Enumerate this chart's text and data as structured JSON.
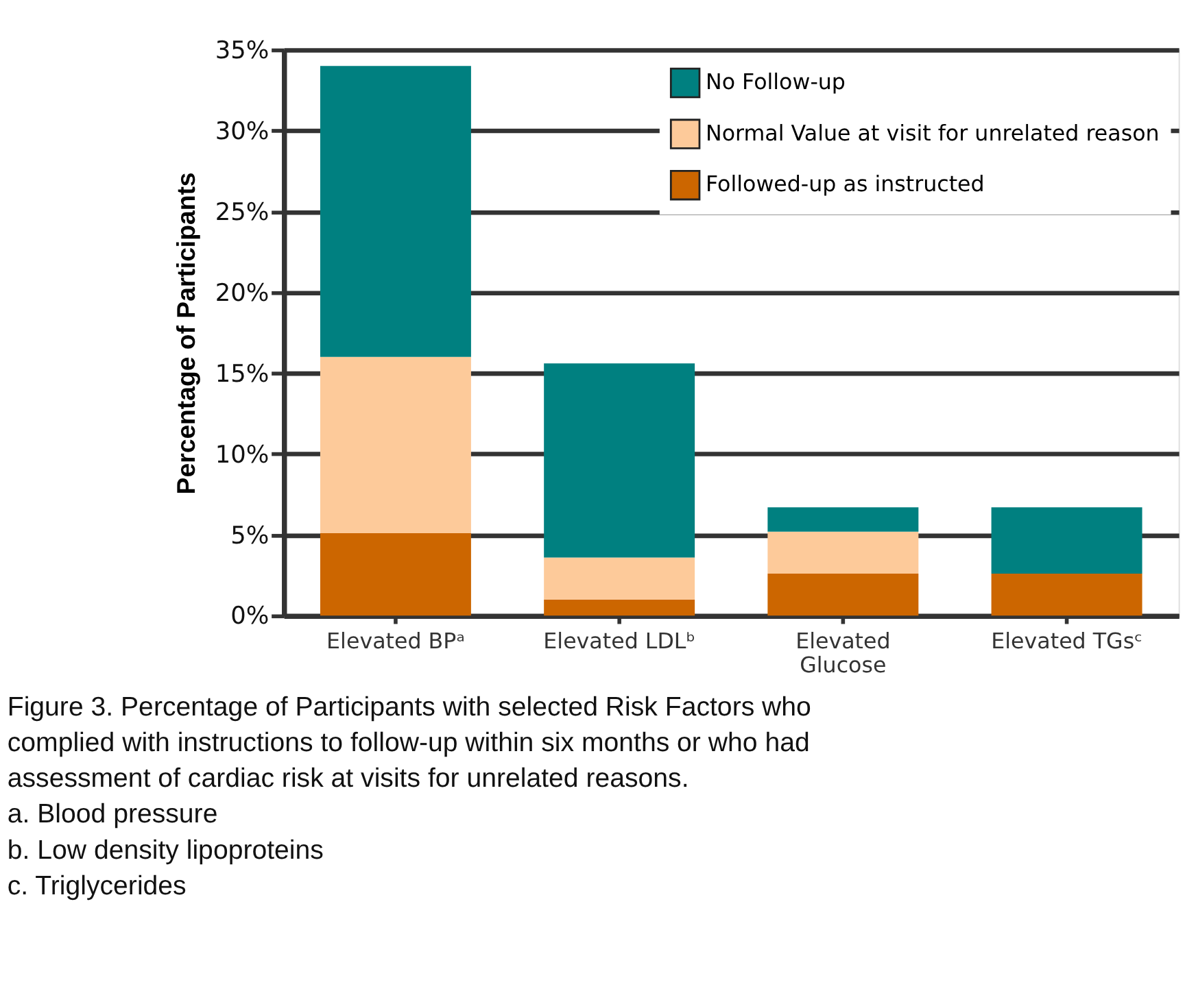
{
  "chart_data": {
    "type": "bar",
    "stacked": true,
    "ylabel": "Percentage of Participants",
    "categories": [
      "Elevated BPᵃ",
      "Elevated LDLᵇ",
      "Elevated Glucose",
      "Elevated TGsᶜ"
    ],
    "series": [
      {
        "name": "Followed-up as  instructed",
        "color": "#cc6600",
        "values": [
          5.1,
          1.0,
          2.6,
          2.6
        ]
      },
      {
        "name": "Normal Value at visit for unrelated reason",
        "color": "#fdca9a",
        "values": [
          10.9,
          2.6,
          2.6,
          0
        ]
      },
      {
        "name": "No Follow-up",
        "color": "#008080",
        "values": [
          18.0,
          12.0,
          1.5,
          4.1
        ]
      }
    ],
    "ylim": [
      0,
      35
    ],
    "yticks": [
      {
        "value": 0,
        "label": "0%"
      },
      {
        "value": 5,
        "label": "5%"
      },
      {
        "value": 10,
        "label": "10%"
      },
      {
        "value": 15,
        "label": "15%"
      },
      {
        "value": 20,
        "label": "20%"
      },
      {
        "value": 25,
        "label": "25%"
      },
      {
        "value": 30,
        "label": "30%"
      },
      {
        "value": 35,
        "label": "35%"
      }
    ],
    "grid": "y",
    "legend": "top right",
    "annotations": [
      "Figure 3. Percentage of Participants with selected Risk Factors who complied with instructions to follow-up within six months or who had assessment of cardiac risk at visits for unrelated reasons.",
      "a.  Blood pressure",
      "b.  Low density lipoproteins",
      "c.  Triglycerides"
    ]
  }
}
